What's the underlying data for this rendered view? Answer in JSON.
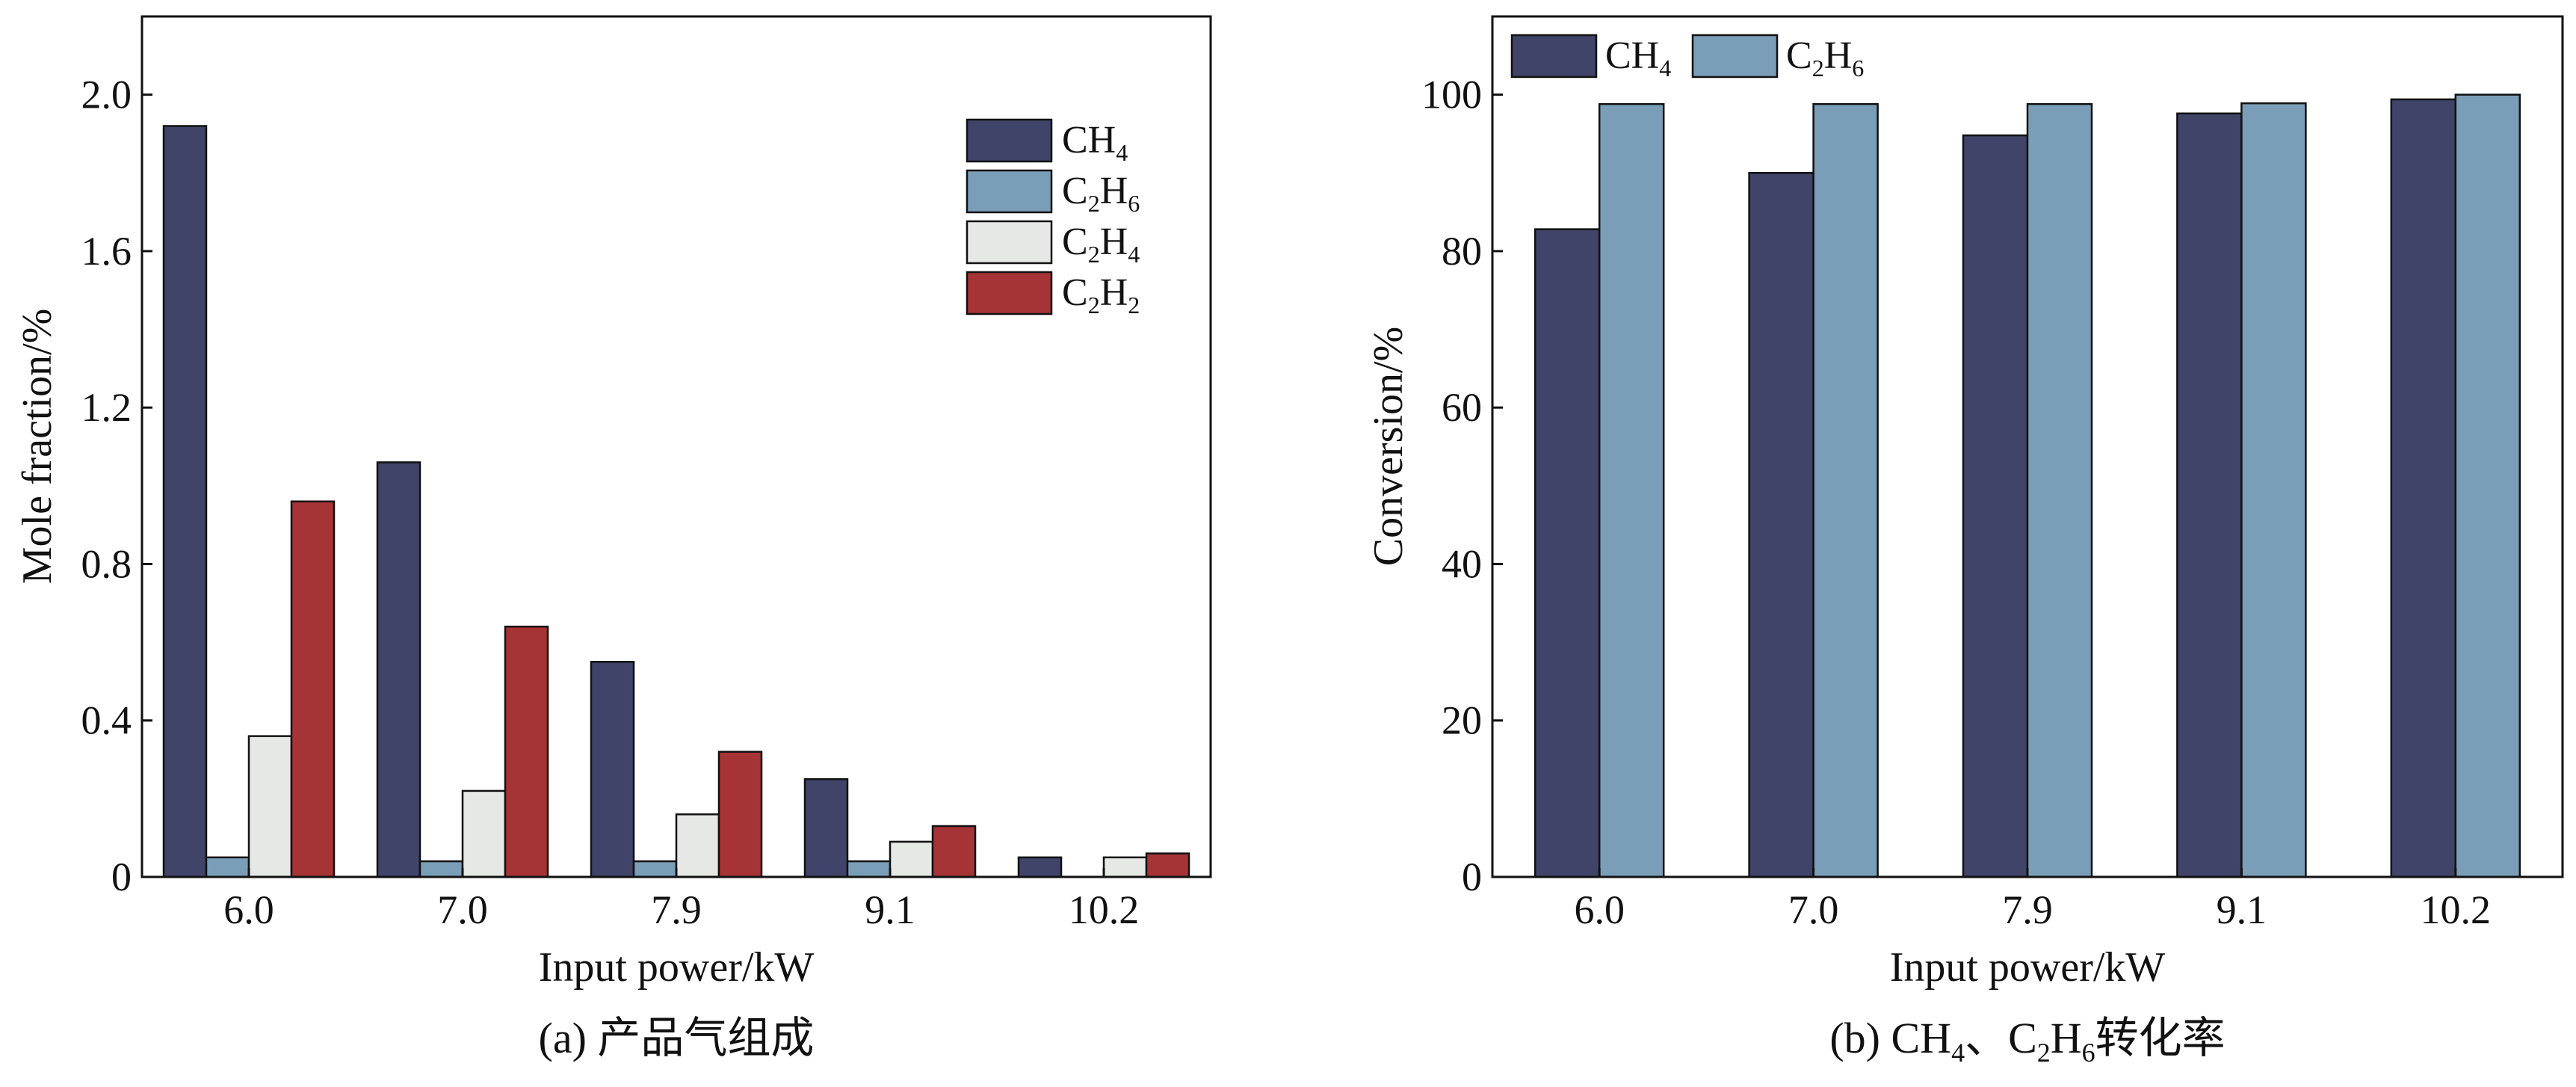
{
  "colors": {
    "CH4": "#3f4468",
    "C2H6": "#7a9eb7",
    "C2H4": "#e6e8e6",
    "C2H2": "#a63336"
  },
  "chart_data": [
    {
      "type": "bar",
      "title": "",
      "caption": {
        "prefix": "(a) ",
        "text": "产品气组成"
      },
      "xlabel": "Input power/kW",
      "ylabel": "Mole fraction/%",
      "categories": [
        "6.0",
        "7.0",
        "7.9",
        "9.1",
        "10.2"
      ],
      "ylim": [
        0,
        2.2
      ],
      "yticks": [
        0,
        0.4,
        0.8,
        1.2,
        1.6,
        2.0
      ],
      "ytick_labels": [
        "0",
        "0.4",
        "0.8",
        "1.2",
        "1.6",
        "2.0"
      ],
      "legend_position": "top-right",
      "series": [
        {
          "name": "CH4",
          "base": "CH",
          "sub1": "4",
          "mid": "",
          "sub2": "",
          "color_key": "CH4",
          "values": [
            1.92,
            1.06,
            0.55,
            0.25,
            0.05
          ]
        },
        {
          "name": "C2H6",
          "base": "C",
          "sub1": "2",
          "mid": "H",
          "sub2": "6",
          "color_key": "C2H6",
          "values": [
            0.05,
            0.04,
            0.04,
            0.04,
            0.0
          ]
        },
        {
          "name": "C2H4",
          "base": "C",
          "sub1": "2",
          "mid": "H",
          "sub2": "4",
          "color_key": "C2H4",
          "values": [
            0.36,
            0.22,
            0.16,
            0.09,
            0.05
          ]
        },
        {
          "name": "C2H2",
          "base": "C",
          "sub1": "2",
          "mid": "H",
          "sub2": "2",
          "color_key": "C2H2",
          "values": [
            0.96,
            0.64,
            0.32,
            0.13,
            0.06
          ]
        }
      ]
    },
    {
      "type": "bar",
      "title": "",
      "caption": {
        "prefix": "(b) ",
        "text": "CH4、C2H6转化率",
        "parts": [
          "CH",
          "4",
          "、C",
          "2",
          "H",
          "6",
          "转化率"
        ]
      },
      "xlabel": "Input power/kW",
      "ylabel": "Conversion/%",
      "categories": [
        "6.0",
        "7.0",
        "7.9",
        "9.1",
        "10.2"
      ],
      "ylim": [
        0,
        110
      ],
      "yticks": [
        0,
        20,
        40,
        60,
        80,
        100
      ],
      "ytick_labels": [
        "0",
        "20",
        "40",
        "60",
        "80",
        "100"
      ],
      "legend_position": "top-left",
      "series": [
        {
          "name": "CH4",
          "base": "CH",
          "sub1": "4",
          "mid": "",
          "sub2": "",
          "color_key": "CH4",
          "values": [
            82.8,
            90.0,
            94.8,
            97.6,
            99.4
          ]
        },
        {
          "name": "C2H6",
          "base": "C",
          "sub1": "2",
          "mid": "H",
          "sub2": "6",
          "color_key": "C2H6",
          "values": [
            98.8,
            98.8,
            98.8,
            98.9,
            100.0
          ]
        }
      ]
    }
  ]
}
